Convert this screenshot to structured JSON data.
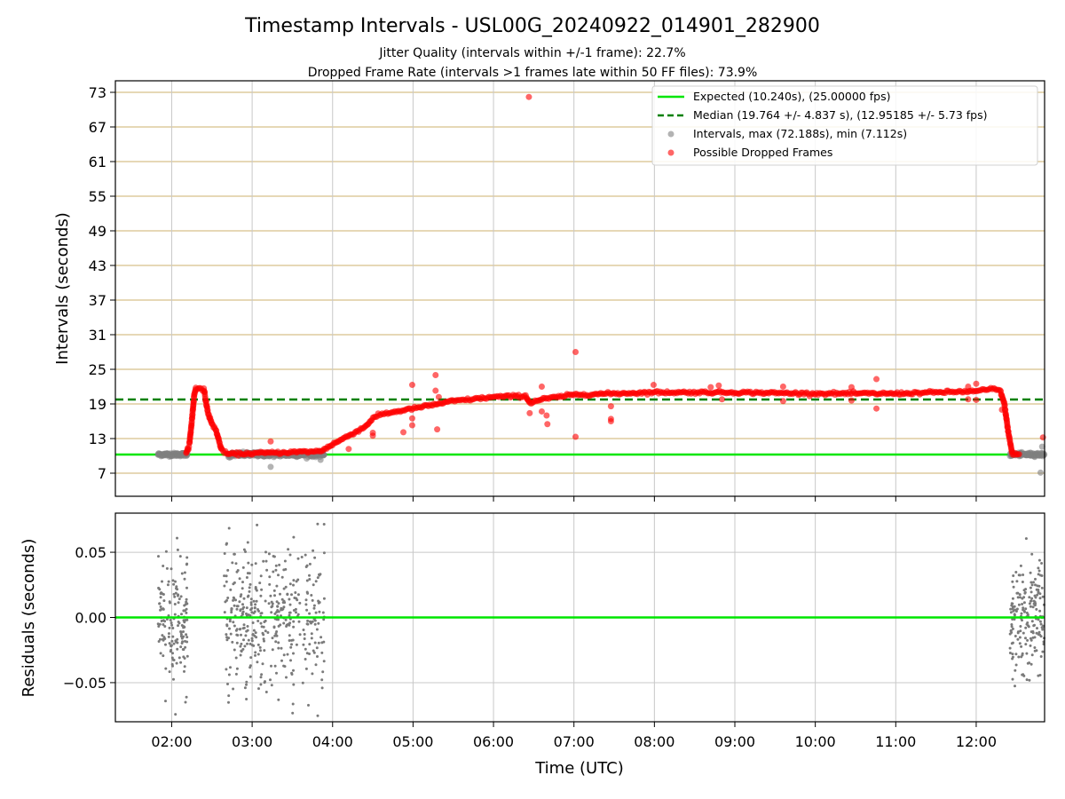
{
  "figure": {
    "title": "Timestamp Intervals - USL00G_20240922_014901_282900",
    "subtitle_1": "Jitter Quality (intervals within +/-1 frame): 22.7%",
    "subtitle_2": "Dropped Frame Rate (intervals >1 frames late within 50 FF files): 73.9%"
  },
  "chart_data": [
    {
      "type": "scatter",
      "name": "intervals",
      "ylabel": "Intervals (seconds)",
      "xlabel": "",
      "xlim": [
        1.3,
        12.85
      ],
      "ylim": [
        3,
        75
      ],
      "yticks": [
        7,
        13,
        19,
        25,
        31,
        37,
        43,
        49,
        55,
        61,
        67,
        73
      ],
      "grid": true,
      "legend_position": "upper right",
      "expected_value": 10.24,
      "median_value": 19.764,
      "legend": [
        {
          "label": "Expected (10.240s), (25.00000 fps)",
          "color": "#00e600",
          "style": "solid"
        },
        {
          "label": "Median (19.764 +/- 4.837 s), (12.95185 +/- 5.73 fps)",
          "color": "#008000",
          "style": "dashed"
        },
        {
          "label": "Intervals, max (72.188s), min (7.112s)",
          "color": "#808080",
          "style": "marker"
        },
        {
          "label": "Possible Dropped Frames",
          "color": "#ff0000",
          "style": "marker"
        }
      ],
      "series": [
        {
          "name": "Intervals, max (72.188s), min (7.112s)",
          "color": "#808080",
          "segments": [
            {
              "x0": 1.83,
              "x1": 2.2,
              "y": 10.24,
              "spread": 0.3
            },
            {
              "x0": 2.7,
              "x1": 3.9,
              "y": 10.24,
              "spread": 0.4
            },
            {
              "x0": 12.42,
              "x1": 12.85,
              "y": 10.24,
              "spread": 0.3
            }
          ],
          "outliers": [
            [
              3.23,
              8.1
            ],
            [
              3.02,
              10.6
            ],
            [
              3.85,
              9.3
            ],
            [
              12.8,
              7.1
            ],
            [
              12.82,
              11.6
            ],
            [
              2.72,
              9.7
            ],
            [
              3.6,
              10.7
            ]
          ]
        },
        {
          "name": "Possible Dropped Frames",
          "color": "#ff0000",
          "curve": [
            [
              2.18,
              10.3
            ],
            [
              2.22,
              12.0
            ],
            [
              2.25,
              16.0
            ],
            [
              2.28,
              20.5
            ],
            [
              2.3,
              21.8
            ],
            [
              2.35,
              21.8
            ],
            [
              2.4,
              21.5
            ],
            [
              2.45,
              17.5
            ],
            [
              2.5,
              15.5
            ],
            [
              2.55,
              14.5
            ],
            [
              2.62,
              11.0
            ],
            [
              2.7,
              10.3
            ],
            [
              3.85,
              10.8
            ],
            [
              4.0,
              12.0
            ],
            [
              4.2,
              13.5
            ],
            [
              4.4,
              15.0
            ],
            [
              4.5,
              16.5
            ],
            [
              4.6,
              17.2
            ],
            [
              5.0,
              18.2
            ],
            [
              5.5,
              19.5
            ],
            [
              6.0,
              20.2
            ],
            [
              6.4,
              20.4
            ],
            [
              6.45,
              19.2
            ],
            [
              6.6,
              19.8
            ],
            [
              7.0,
              20.6
            ],
            [
              8.0,
              21.0
            ],
            [
              9.0,
              21.0
            ],
            [
              10.0,
              20.8
            ],
            [
              11.0,
              20.8
            ],
            [
              12.0,
              21.2
            ],
            [
              12.2,
              21.6
            ],
            [
              12.3,
              21.3
            ],
            [
              12.35,
              19.0
            ],
            [
              12.4,
              14.0
            ],
            [
              12.45,
              10.3
            ],
            [
              12.55,
              10.3
            ]
          ],
          "outliers": [
            [
              6.44,
              72.2
            ],
            [
              3.23,
              12.5
            ],
            [
              4.2,
              11.2
            ],
            [
              4.5,
              13.5
            ],
            [
              4.5,
              14.0
            ],
            [
              4.88,
              14.1
            ],
            [
              4.99,
              22.3
            ],
            [
              4.99,
              16.5
            ],
            [
              4.99,
              15.3
            ],
            [
              5.28,
              24.0
            ],
            [
              5.28,
              21.3
            ],
            [
              5.3,
              14.6
            ],
            [
              5.32,
              20.2
            ],
            [
              6.45,
              17.4
            ],
            [
              6.6,
              22.0
            ],
            [
              6.6,
              17.7
            ],
            [
              6.66,
              17.0
            ],
            [
              6.67,
              15.5
            ],
            [
              7.02,
              28.0
            ],
            [
              7.02,
              13.3
            ],
            [
              7.46,
              18.6
            ],
            [
              7.46,
              16.4
            ],
            [
              7.46,
              16.0
            ],
            [
              7.99,
              22.3
            ],
            [
              8.7,
              21.9
            ],
            [
              8.8,
              22.2
            ],
            [
              8.84,
              19.8
            ],
            [
              9.6,
              22.0
            ],
            [
              9.6,
              19.5
            ],
            [
              10.45,
              19.6
            ],
            [
              10.45,
              21.9
            ],
            [
              10.76,
              23.3
            ],
            [
              10.76,
              18.2
            ],
            [
              11.9,
              22.0
            ],
            [
              11.9,
              19.8
            ],
            [
              12.0,
              22.5
            ],
            [
              12.0,
              19.7
            ],
            [
              12.83,
              13.2
            ],
            [
              12.32,
              18.0
            ]
          ]
        }
      ]
    },
    {
      "type": "scatter",
      "name": "residuals",
      "ylabel": "Residuals (seconds)",
      "xlabel": "Time (UTC)",
      "xlim": [
        1.3,
        12.85
      ],
      "ylim": [
        -0.08,
        0.08
      ],
      "yticks": [
        -0.05,
        0.0,
        0.05
      ],
      "ytick_labels": [
        "−0.05",
        "0.00",
        "0.05"
      ],
      "xticks": [
        2,
        3,
        4,
        5,
        6,
        7,
        8,
        9,
        10,
        11,
        12
      ],
      "xtick_labels": [
        "02:00",
        "03:00",
        "04:00",
        "05:00",
        "06:00",
        "07:00",
        "08:00",
        "09:00",
        "10:00",
        "11:00",
        "12:00"
      ],
      "grid": true,
      "zero_line_color": "#00e600",
      "series": [
        {
          "name": "residuals",
          "color": "#7a7a7a",
          "clusters": [
            {
              "x0": 1.83,
              "x1": 2.2,
              "n": 160,
              "sd": 0.022
            },
            {
              "x0": 2.65,
              "x1": 3.9,
              "n": 420,
              "sd": 0.03
            },
            {
              "x0": 12.42,
              "x1": 12.85,
              "n": 190,
              "sd": 0.022
            }
          ]
        }
      ]
    }
  ]
}
